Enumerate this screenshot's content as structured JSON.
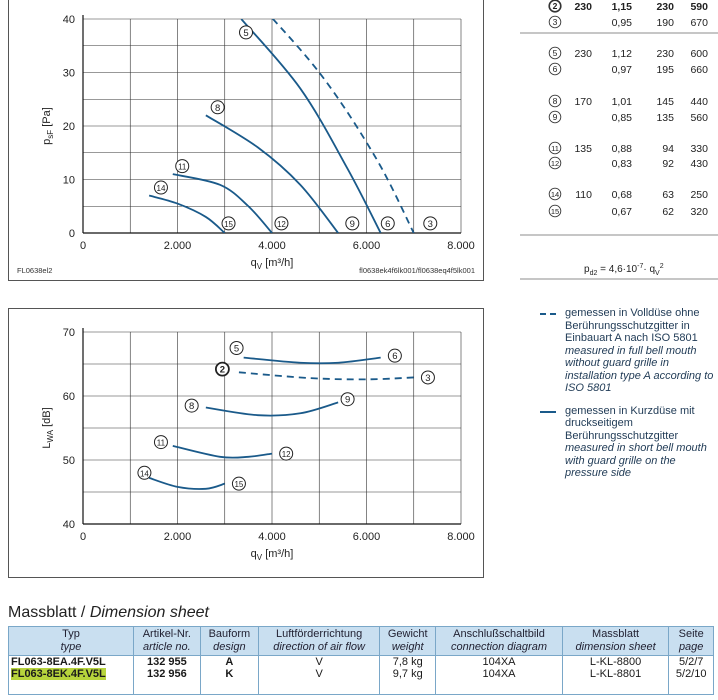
{
  "chart_data": [
    {
      "type": "line",
      "ylabel": "psF [Pa]",
      "ylabel_sub": "sF",
      "xlabel": "qV [m³/h]",
      "xlim": [
        0,
        8000
      ],
      "ylim": [
        0,
        40
      ],
      "xticks": [
        "0",
        "2.000",
        "4.000",
        "6.000",
        "8.000"
      ],
      "yticks": [
        "0",
        "10",
        "20",
        "30",
        "40"
      ],
      "code_left": "FL0638el2",
      "code_right": "fl0638ek4f6lk001/fl0638eq4f5lk001",
      "series": [
        {
          "marker": "3",
          "style": "dashed",
          "points": [
            [
              3500,
              45
            ],
            [
              5000,
              30
            ],
            [
              6200,
              14
            ],
            [
              7000,
              0
            ]
          ]
        },
        {
          "marker": "5",
          "style": "solid",
          "end_marker": "6",
          "points": [
            [
              3350,
              40
            ],
            [
              4600,
              27
            ],
            [
              5600,
              12
            ],
            [
              6300,
              0
            ]
          ]
        },
        {
          "marker": "8",
          "style": "solid",
          "end_marker": "9",
          "points": [
            [
              2600,
              22
            ],
            [
              3700,
              16
            ],
            [
              4600,
              9
            ],
            [
              5400,
              0
            ]
          ]
        },
        {
          "marker": "11",
          "style": "solid",
          "end_marker": "12",
          "points": [
            [
              1900,
              11
            ],
            [
              2900,
              9
            ],
            [
              3500,
              5
            ],
            [
              4000,
              0
            ]
          ]
        },
        {
          "marker": "14",
          "style": "solid",
          "end_marker": "15",
          "points": [
            [
              1400,
              7
            ],
            [
              2000,
              5.5
            ],
            [
              2600,
              3
            ],
            [
              3000,
              0
            ]
          ]
        }
      ]
    },
    {
      "type": "line",
      "ylabel": "LWA [dB]",
      "ylabel_sub": "WA",
      "xlabel": "qV [m³/h]",
      "xlim": [
        0,
        8000
      ],
      "ylim": [
        40,
        70
      ],
      "xticks": [
        "0",
        "2.000",
        "4.000",
        "6.000",
        "8.000"
      ],
      "yticks": [
        "40",
        "50",
        "60",
        "70"
      ],
      "series": [
        {
          "marker": "2",
          "end_marker": "3",
          "style": "dashed",
          "points": [
            [
              3300,
              63.7
            ],
            [
              4800,
              62.8
            ],
            [
              6000,
              62.6
            ],
            [
              7000,
              62.9
            ]
          ]
        },
        {
          "marker": "5",
          "end_marker": "6",
          "style": "solid",
          "points": [
            [
              3400,
              66
            ],
            [
              4600,
              65.2
            ],
            [
              5400,
              65.2
            ],
            [
              6300,
              66
            ]
          ]
        },
        {
          "marker": "8",
          "end_marker": "9",
          "style": "solid",
          "points": [
            [
              2600,
              58.2
            ],
            [
              3700,
              57
            ],
            [
              4600,
              57.3
            ],
            [
              5400,
              59
            ]
          ]
        },
        {
          "marker": "11",
          "end_marker": "12",
          "style": "solid",
          "points": [
            [
              1900,
              52.2
            ],
            [
              2900,
              50.5
            ],
            [
              3500,
              50.5
            ],
            [
              4000,
              51
            ]
          ]
        },
        {
          "marker": "14",
          "end_marker": "15",
          "style": "solid",
          "points": [
            [
              1400,
              47.2
            ],
            [
              2000,
              45.8
            ],
            [
              2600,
              45.5
            ],
            [
              3000,
              46.3
            ]
          ]
        }
      ]
    }
  ],
  "op_table": {
    "rows": [
      {
        "id": "2",
        "v": "230",
        "i": "1,15",
        "p": "230",
        "n": "590",
        "bold": true
      },
      {
        "id": "3",
        "v": "",
        "i": "0,95",
        "p": "190",
        "n": "670"
      },
      {
        "id": "5",
        "v": "230",
        "i": "1,12",
        "p": "230",
        "n": "600"
      },
      {
        "id": "6",
        "v": "",
        "i": "0,97",
        "p": "195",
        "n": "660"
      },
      {
        "id": "8",
        "v": "170",
        "i": "1,01",
        "p": "145",
        "n": "440"
      },
      {
        "id": "9",
        "v": "",
        "i": "0,85",
        "p": "135",
        "n": "560"
      },
      {
        "id": "11",
        "v": "135",
        "i": "0,88",
        "p": "94",
        "n": "330"
      },
      {
        "id": "12",
        "v": "",
        "i": "0,83",
        "p": "92",
        "n": "430"
      },
      {
        "id": "14",
        "v": "110",
        "i": "0,68",
        "p": "63",
        "n": "250"
      },
      {
        "id": "15",
        "v": "",
        "i": "0,67",
        "p": "62",
        "n": "320"
      }
    ],
    "formula_prefix": "pd2 = 4,6·10",
    "formula_exp": "-7",
    "formula_suffix": "· qV",
    "formula_sq": "2"
  },
  "legend": {
    "dashed_de": "gemessen in Volldüse ohne Berührungsschutzgitter in Einbauart A nach ISO 5801",
    "dashed_en": "measured in full bell mouth without guard grille in installation type A according to ISO 5801",
    "solid_de": "gemessen in Kurzdüse mit druckseitigem Berührungsschutzgitter",
    "solid_en": "measured in short bell mouth with guard grille on the pressure side"
  },
  "dimension": {
    "title_de": "Massblatt / ",
    "title_en": "Dimension sheet",
    "headers": [
      {
        "de": "Typ",
        "en": "type"
      },
      {
        "de": "Artikel-Nr.",
        "en": "article no."
      },
      {
        "de": "Bauform",
        "en": "design"
      },
      {
        "de": "Luftförderrichtung",
        "en": "direction of air flow"
      },
      {
        "de": "Gewicht",
        "en": "weight"
      },
      {
        "de": "Anschlußschaltbild",
        "en": "connection diagram"
      },
      {
        "de": "Massblatt",
        "en": "dimension sheet"
      },
      {
        "de": "Seite",
        "en": "page"
      }
    ],
    "rows": [
      {
        "type": "FL063-8EA.4F.V5L",
        "article": "132 955",
        "design": "A",
        "flow": "V",
        "weight": "7,8 kg",
        "diagram": "104XA",
        "sheet": "L-KL-8800",
        "page": "5/2/7"
      },
      {
        "type": "FL063-8EK.4F.V5L",
        "article": "132 956",
        "design": "K",
        "flow": "V",
        "weight": "9,7 kg",
        "diagram": "104XA",
        "sheet": "L-KL-8801",
        "page": "5/2/10"
      }
    ]
  },
  "colors": {
    "curve": "#1a5a8a",
    "grid": "#333333",
    "header_bg": "#c9dff0",
    "highlight": "#b7d43c"
  }
}
